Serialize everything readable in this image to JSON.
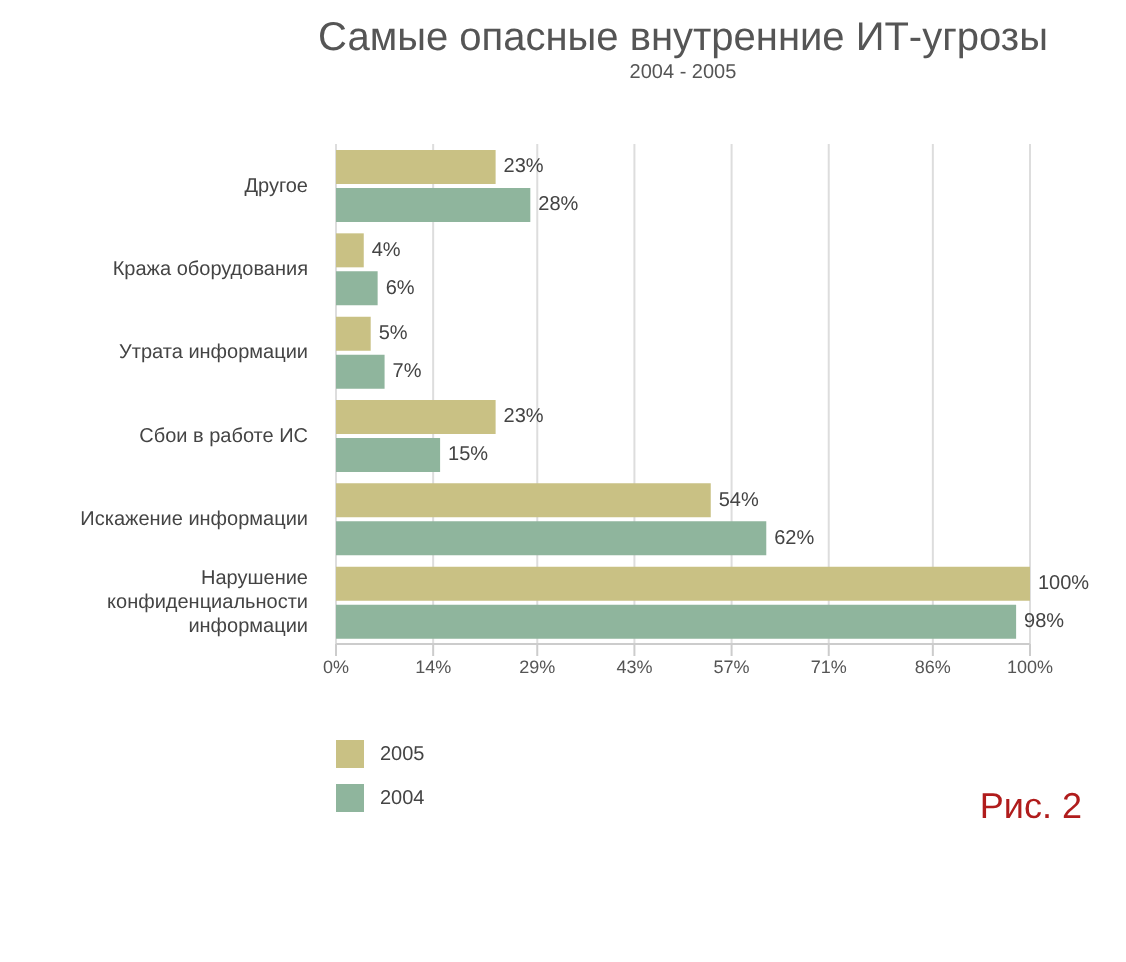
{
  "chart_data": {
    "type": "bar",
    "orientation": "horizontal",
    "title": "Самые опасные внутренние ИТ-угрозы",
    "subtitle": "2004 - 2005",
    "categories": [
      "Другое",
      "Кража оборудования",
      "Утрата информации",
      "Сбои в работе ИС",
      "Искажение информации",
      "Нарушение конфиденциальности информации"
    ],
    "series": [
      {
        "name": "2005",
        "color": "#c9c184",
        "values": [
          23,
          4,
          5,
          23,
          54,
          100
        ],
        "value_labels": [
          "23%",
          "4%",
          "5%",
          "23%",
          "54%",
          "100%"
        ]
      },
      {
        "name": "2004",
        "color": "#8fb59d",
        "values": [
          28,
          6,
          7,
          15,
          62,
          98
        ],
        "value_labels": [
          "28%",
          "6%",
          "7%",
          "15%",
          "62%",
          "98%"
        ]
      }
    ],
    "xlim": [
      0,
      100
    ],
    "xticks": [
      {
        "value": 0,
        "label": "0%"
      },
      {
        "value": 14,
        "label": "14%"
      },
      {
        "value": 29,
        "label": "29%"
      },
      {
        "value": 43,
        "label": "43%"
      },
      {
        "value": 57,
        "label": "57%"
      },
      {
        "value": 71,
        "label": "71%"
      },
      {
        "value": 86,
        "label": "86%"
      },
      {
        "value": 100,
        "label": "100%"
      }
    ],
    "grid": "x",
    "legend": "bottom left",
    "annotations": [
      "Рис. 2"
    ]
  }
}
